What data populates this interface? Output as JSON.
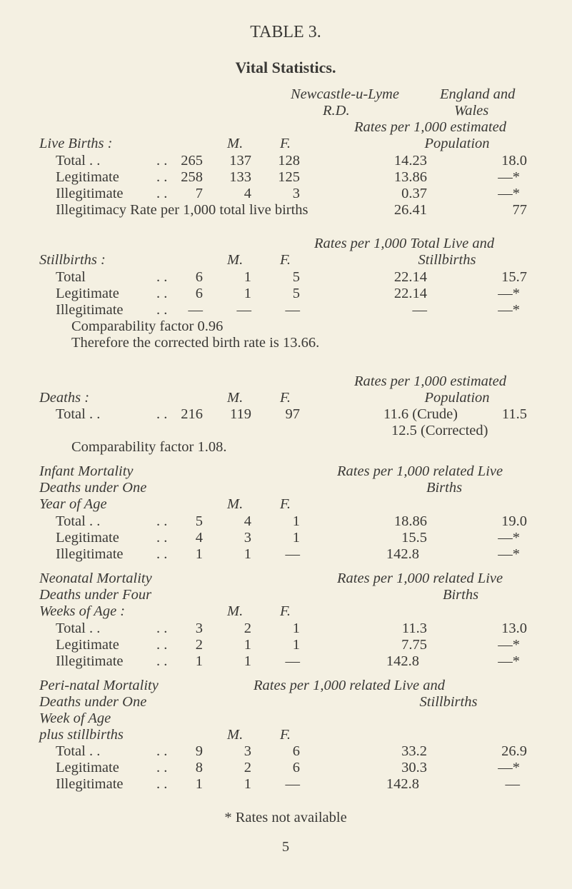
{
  "title": "TABLE 3.",
  "subtitle": "Vital Statistics.",
  "column_headers": {
    "area1_line1": "Newcastle-u-Lyme",
    "area1_line2": "R.D.",
    "area2_line1": "England and",
    "area2_line2": "Wales"
  },
  "live_births": {
    "rate_header_1": "Rates per 1,000 estimated",
    "rate_header_2": "Population",
    "heading": "Live Births :",
    "m": "M.",
    "f": "F.",
    "rows": [
      {
        "label": "Total . .",
        "dots": ". .",
        "count": "265",
        "m": "137",
        "f": "128",
        "rate": "14.23",
        "ew": "18.0"
      },
      {
        "label": "Legitimate",
        "dots": ". .",
        "count": "258",
        "m": "133",
        "f": "125",
        "rate": "13.86",
        "ew": "—*"
      },
      {
        "label": "Illegitimate",
        "dots": ". .",
        "count": "7",
        "m": "4",
        "f": "3",
        "rate": "0.37",
        "ew": "—*"
      }
    ],
    "illegitimacy": {
      "label": "Illegitimacy Rate per 1,000 total live births",
      "rate": "26.41",
      "ew": "77"
    }
  },
  "stillbirths": {
    "rate_header_1": "Rates per 1,000 Total Live and",
    "rate_header_2": "Stillbirths",
    "heading": "Stillbirths :",
    "m": "M.",
    "f": "F.",
    "rows": [
      {
        "label": "Total",
        "dots": ". .",
        "count": "6",
        "m": "1",
        "f": "5",
        "rate": "22.14",
        "ew": "15.7"
      },
      {
        "label": "Legitimate",
        "dots": ". .",
        "count": "6",
        "m": "1",
        "f": "5",
        "rate": "22.14",
        "ew": "—*"
      },
      {
        "label": "Illegitimate",
        "dots": ". .",
        "count": "—",
        "m": "—",
        "f": "—",
        "rate": "—",
        "ew": "—*"
      }
    ],
    "comparability": "Comparability factor 0.96",
    "corrected": "Therefore the corrected birth rate is 13.66."
  },
  "deaths": {
    "rate_header_1": "Rates per 1,000 estimated",
    "rate_header_2": "Population",
    "heading": "Deaths :",
    "m": "M.",
    "f": "F.",
    "rows": [
      {
        "label": "Total . .",
        "dots": ". .",
        "count": "216",
        "m": "119",
        "f": "97",
        "rate": "11.6 (Crude)",
        "ew": "11.5"
      }
    ],
    "corrected_rate": "12.5 (Corrected)",
    "comparability": "Comparability factor 1.08."
  },
  "infant": {
    "heading_lines": [
      "Infant Mortality",
      "Deaths under One",
      "Year of Age"
    ],
    "rate_header_1": "Rates per 1,000 related Live",
    "rate_header_2": "Births",
    "m": "M.",
    "f": "F.",
    "rows": [
      {
        "label": "Total . .",
        "dots": ". .",
        "count": "5",
        "m": "4",
        "f": "1",
        "rate": "18.86",
        "ew": "19.0"
      },
      {
        "label": "Legitimate",
        "dots": ". .",
        "count": "4",
        "m": "3",
        "f": "1",
        "rate": "15.5",
        "ew": "—*"
      },
      {
        "label": "Illegitimate",
        "dots": ". .",
        "count": "1",
        "m": "1",
        "f": "—",
        "rate": "142.8",
        "ew": "—*"
      }
    ]
  },
  "neonatal": {
    "heading_lines": [
      "Neonatal Mortality",
      "Deaths under Four",
      "Weeks of Age :"
    ],
    "rate_header_1": "Rates per 1,000 related Live",
    "rate_header_2": "Births",
    "m": "M.",
    "f": "F.",
    "rows": [
      {
        "label": "Total . .",
        "dots": ". .",
        "count": "3",
        "m": "2",
        "f": "1",
        "rate": "11.3",
        "ew": "13.0"
      },
      {
        "label": "Legitimate",
        "dots": ". .",
        "count": "2",
        "m": "1",
        "f": "1",
        "rate": "7.75",
        "ew": "—*"
      },
      {
        "label": "Illegitimate",
        "dots": ". .",
        "count": "1",
        "m": "1",
        "f": "—",
        "rate": "142.8",
        "ew": "—*"
      }
    ]
  },
  "perinatal": {
    "heading_lines": [
      "Peri-natal Mortality",
      "Deaths under One",
      "Week of Age",
      "plus stillbirths"
    ],
    "rate_header_1": "Rates per 1,000 related Live and",
    "rate_header_2": "Stillbirths",
    "m": "M.",
    "f": "F.",
    "rows": [
      {
        "label": "Total . .",
        "dots": ". .",
        "count": "9",
        "m": "3",
        "f": "6",
        "rate": "33.2",
        "ew": "26.9"
      },
      {
        "label": "Legitimate",
        "dots": ". .",
        "count": "8",
        "m": "2",
        "f": "6",
        "rate": "30.3",
        "ew": "—*"
      },
      {
        "label": "Illegitimate",
        "dots": ". .",
        "count": "1",
        "m": "1",
        "f": "—",
        "rate": "142.8",
        "ew": "—"
      }
    ]
  },
  "footnote": "* Rates not available",
  "page_number": "5"
}
